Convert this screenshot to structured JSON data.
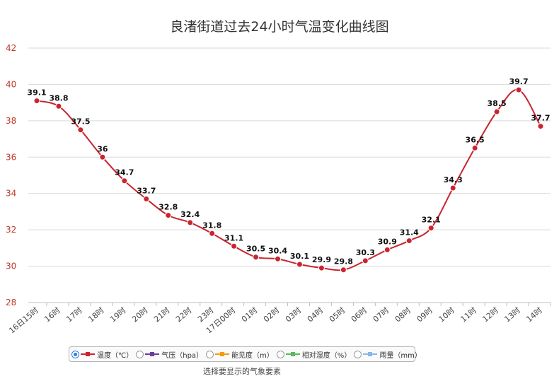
{
  "chart_data": {
    "type": "line",
    "title": "良渚街道过去24小时气温变化曲线图",
    "categories": [
      "16日15时",
      "16时",
      "17时",
      "18时",
      "19时",
      "20时",
      "21时",
      "22时",
      "23时",
      "17日00时",
      "01时",
      "02时",
      "03时",
      "04时",
      "05时",
      "06时",
      "07时",
      "08时",
      "09时",
      "10时",
      "11时",
      "12时",
      "13时",
      "14时"
    ],
    "series": [
      {
        "name": "温度（℃）",
        "color": "#c9252f",
        "values": [
          39.1,
          38.8,
          37.5,
          36,
          34.7,
          33.7,
          32.8,
          32.4,
          31.8,
          31.1,
          30.5,
          30.4,
          30.1,
          29.9,
          29.8,
          30.3,
          30.9,
          31.4,
          32.1,
          34.3,
          36.5,
          38.5,
          39.7,
          37.7
        ]
      }
    ],
    "yticks": [
      28,
      30,
      32,
      34,
      36,
      38,
      40,
      42
    ],
    "ylim": [
      28,
      42
    ],
    "grid": true,
    "data_labels": true,
    "legend_position": "bottom"
  },
  "legend": {
    "items": [
      {
        "label": "温度（℃）",
        "color": "#c9252f",
        "selected": true,
        "icon": "temperature-series-icon"
      },
      {
        "label": "气压（hpa）",
        "color": "#6a3d9a",
        "selected": false,
        "icon": "pressure-series-icon"
      },
      {
        "label": "能见度（m）",
        "color": "#f39c12",
        "selected": false,
        "icon": "visibility-series-icon"
      },
      {
        "label": "相对湿度（%）",
        "color": "#5cb85c",
        "selected": false,
        "icon": "humidity-series-icon"
      },
      {
        "label": "雨量（mm）",
        "color": "#8ab6e8",
        "selected": false,
        "icon": "rainfall-series-icon"
      }
    ],
    "caption": "选择要显示的气象要素"
  }
}
